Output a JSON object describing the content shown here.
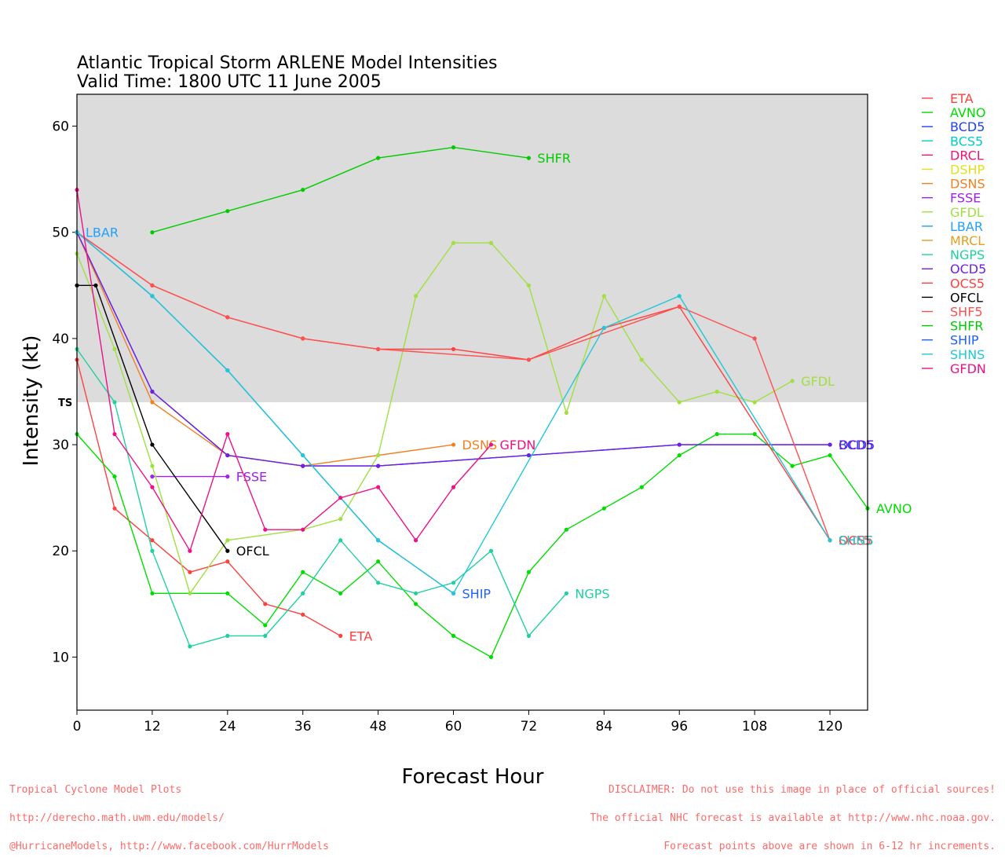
{
  "footer": {
    "left": [
      "Tropical Cyclone Model Plots",
      "http://derecho.math.uwm.edu/models/",
      "@HurricaneModels, http://www.facebook.com/HurrModels"
    ],
    "right": [
      "DISCLAIMER: Do not use this image in place of official sources!",
      "The official NHC forecast is available at http://www.nhc.noaa.gov.",
      "Forecast points above are shown in 6-12 hr increments."
    ]
  },
  "chart_data": {
    "type": "line",
    "title": "Atlantic Tropical Storm ARLENE Model Intensities",
    "subtitle": "Valid Time: 1800 UTC 11 June 2005",
    "xlabel": "Forecast Hour",
    "ylabel": "Intensity (kt)",
    "xlim": [
      0,
      126
    ],
    "ylim": [
      5,
      63
    ],
    "xticks": [
      0,
      12,
      24,
      36,
      48,
      60,
      72,
      84,
      96,
      108,
      120
    ],
    "yticks": [
      10,
      20,
      30,
      40,
      50,
      60
    ],
    "shaded_band": {
      "from": 34,
      "to": 63,
      "label": "TS",
      "color": "#dcdcdc"
    },
    "grid": false,
    "legend_position": "right",
    "series": [
      {
        "name": "ETA",
        "color": "#ff4040",
        "label": "ETA",
        "points": [
          [
            0,
            38
          ],
          [
            6,
            24
          ],
          [
            12,
            21
          ],
          [
            18,
            18
          ],
          [
            24,
            19
          ],
          [
            30,
            15
          ],
          [
            36,
            14
          ],
          [
            42,
            12
          ]
        ]
      },
      {
        "name": "AVNO",
        "color": "#00dd00",
        "label": "AVNO",
        "points": [
          [
            0,
            31
          ],
          [
            6,
            27
          ],
          [
            12,
            16
          ],
          [
            24,
            16
          ],
          [
            30,
            13
          ],
          [
            36,
            18
          ],
          [
            42,
            16
          ],
          [
            48,
            19
          ],
          [
            54,
            15
          ],
          [
            60,
            12
          ],
          [
            66,
            10
          ],
          [
            72,
            18
          ],
          [
            78,
            22
          ],
          [
            84,
            24
          ],
          [
            90,
            26
          ],
          [
            96,
            29
          ],
          [
            102,
            31
          ],
          [
            108,
            31
          ],
          [
            114,
            28
          ],
          [
            120,
            29
          ],
          [
            126,
            24
          ]
        ]
      },
      {
        "name": "BCD5",
        "color": "#2040ff",
        "label": "BCD5",
        "points": [
          [
            0,
            50
          ],
          [
            12,
            35
          ],
          [
            24,
            29
          ],
          [
            36,
            28
          ],
          [
            48,
            28
          ],
          [
            72,
            29
          ],
          [
            96,
            30
          ],
          [
            120,
            30
          ]
        ]
      },
      {
        "name": "BCS5",
        "color": "#00cccc",
        "label": null,
        "points": []
      },
      {
        "name": "DRCL",
        "color": "#ee1177",
        "label": null,
        "points": []
      },
      {
        "name": "DSHP",
        "color": "#e0e020",
        "label": null,
        "points": []
      },
      {
        "name": "DSNS",
        "color": "#f08020",
        "label": "DSNS",
        "points": [
          [
            0,
            50
          ],
          [
            12,
            34
          ],
          [
            24,
            29
          ],
          [
            36,
            28
          ],
          [
            60,
            30
          ]
        ]
      },
      {
        "name": "FSSE",
        "color": "#a020f0",
        "label": "FSSE",
        "points": [
          [
            12,
            27
          ],
          [
            24,
            27
          ]
        ]
      },
      {
        "name": "GFDL",
        "color": "#a0e040",
        "label": "GFDL",
        "points": [
          [
            0,
            48
          ],
          [
            6,
            39
          ],
          [
            12,
            28
          ],
          [
            18,
            16
          ],
          [
            24,
            21
          ],
          [
            36,
            22
          ],
          [
            42,
            23
          ],
          [
            48,
            29
          ],
          [
            54,
            44
          ],
          [
            60,
            49
          ],
          [
            66,
            49
          ],
          [
            72,
            45
          ],
          [
            78,
            33
          ],
          [
            84,
            44
          ],
          [
            90,
            38
          ],
          [
            96,
            34
          ],
          [
            102,
            35
          ],
          [
            108,
            34
          ],
          [
            114,
            36
          ]
        ]
      },
      {
        "name": "LBAR",
        "color": "#20a0ff",
        "label": "LBAR",
        "points": [
          [
            0,
            50
          ]
        ]
      },
      {
        "name": "MRCL",
        "color": "#e0a020",
        "label": null,
        "points": []
      },
      {
        "name": "NGPS",
        "color": "#20d0a0",
        "label": "NGPS",
        "points": [
          [
            0,
            39
          ],
          [
            6,
            34
          ],
          [
            12,
            20
          ],
          [
            18,
            11
          ],
          [
            24,
            12
          ],
          [
            30,
            12
          ],
          [
            36,
            16
          ],
          [
            42,
            21
          ],
          [
            48,
            17
          ],
          [
            54,
            16
          ],
          [
            60,
            17
          ],
          [
            66,
            20
          ],
          [
            72,
            12
          ],
          [
            78,
            16
          ]
        ]
      },
      {
        "name": "OCD5",
        "color": "#7020e0",
        "label": "OCD5",
        "points": [
          [
            0,
            50
          ],
          [
            12,
            35
          ],
          [
            24,
            29
          ],
          [
            36,
            28
          ],
          [
            48,
            28
          ],
          [
            72,
            29
          ],
          [
            96,
            30
          ],
          [
            120,
            30
          ]
        ]
      },
      {
        "name": "OCS5",
        "color": "#ff4040",
        "label": "OCS5",
        "points": [
          [
            0,
            50
          ],
          [
            12,
            45
          ],
          [
            24,
            42
          ],
          [
            36,
            40
          ],
          [
            48,
            39
          ],
          [
            60,
            39
          ],
          [
            72,
            38
          ],
          [
            84,
            41
          ],
          [
            96,
            43
          ],
          [
            120,
            21
          ]
        ]
      },
      {
        "name": "OFCL",
        "color": "#000000",
        "label": "OFCL",
        "points": [
          [
            0,
            45
          ],
          [
            3,
            45
          ],
          [
            12,
            30
          ],
          [
            24,
            20
          ]
        ]
      },
      {
        "name": "SHF5",
        "color": "#ff5050",
        "label": "SHF5",
        "points": [
          [
            0,
            50
          ],
          [
            12,
            45
          ],
          [
            24,
            42
          ],
          [
            36,
            40
          ],
          [
            48,
            39
          ],
          [
            72,
            38
          ],
          [
            96,
            43
          ],
          [
            108,
            40
          ],
          [
            120,
            21
          ]
        ]
      },
      {
        "name": "SHFR",
        "color": "#00cc00",
        "label": "SHFR",
        "points": [
          [
            12,
            50
          ],
          [
            24,
            52
          ],
          [
            36,
            54
          ],
          [
            48,
            57
          ],
          [
            60,
            58
          ],
          [
            72,
            57
          ]
        ]
      },
      {
        "name": "SHIP",
        "color": "#2060ff",
        "label": "SHIP",
        "points": [
          [
            0,
            50
          ],
          [
            12,
            44
          ],
          [
            24,
            37
          ],
          [
            36,
            29
          ],
          [
            48,
            21
          ],
          [
            60,
            16
          ]
        ]
      },
      {
        "name": "SHNS",
        "color": "#20c8d8",
        "label": "SHNS",
        "points": [
          [
            0,
            50
          ],
          [
            12,
            44
          ],
          [
            24,
            37
          ],
          [
            36,
            29
          ],
          [
            48,
            21
          ],
          [
            60,
            16
          ],
          [
            84,
            41
          ],
          [
            96,
            44
          ],
          [
            120,
            21
          ]
        ]
      },
      {
        "name": "GFDN",
        "color": "#ee1188",
        "label": "GFDN",
        "points": [
          [
            0,
            54
          ],
          [
            6,
            31
          ],
          [
            12,
            26
          ],
          [
            18,
            20
          ],
          [
            24,
            31
          ],
          [
            30,
            22
          ],
          [
            36,
            22
          ],
          [
            42,
            25
          ],
          [
            48,
            26
          ],
          [
            54,
            21
          ],
          [
            60,
            26
          ],
          [
            66,
            30
          ]
        ]
      }
    ]
  }
}
